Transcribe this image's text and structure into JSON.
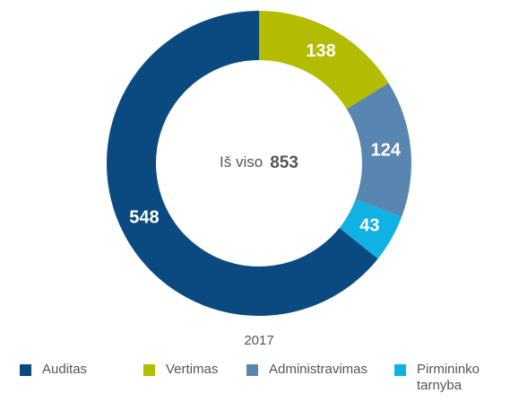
{
  "chart_data": {
    "type": "donut",
    "categories": [
      "Auditas",
      "Vertimas",
      "Administravimas",
      "Pirmininko tarnyba"
    ],
    "values": [
      548,
      138,
      124,
      43
    ],
    "colors": [
      "#0a4a80",
      "#b4bc00",
      "#5886b0",
      "#10b2e4"
    ],
    "center_label": "Iš viso",
    "total": 853,
    "xlabel": "2017",
    "legend": "bottom"
  }
}
